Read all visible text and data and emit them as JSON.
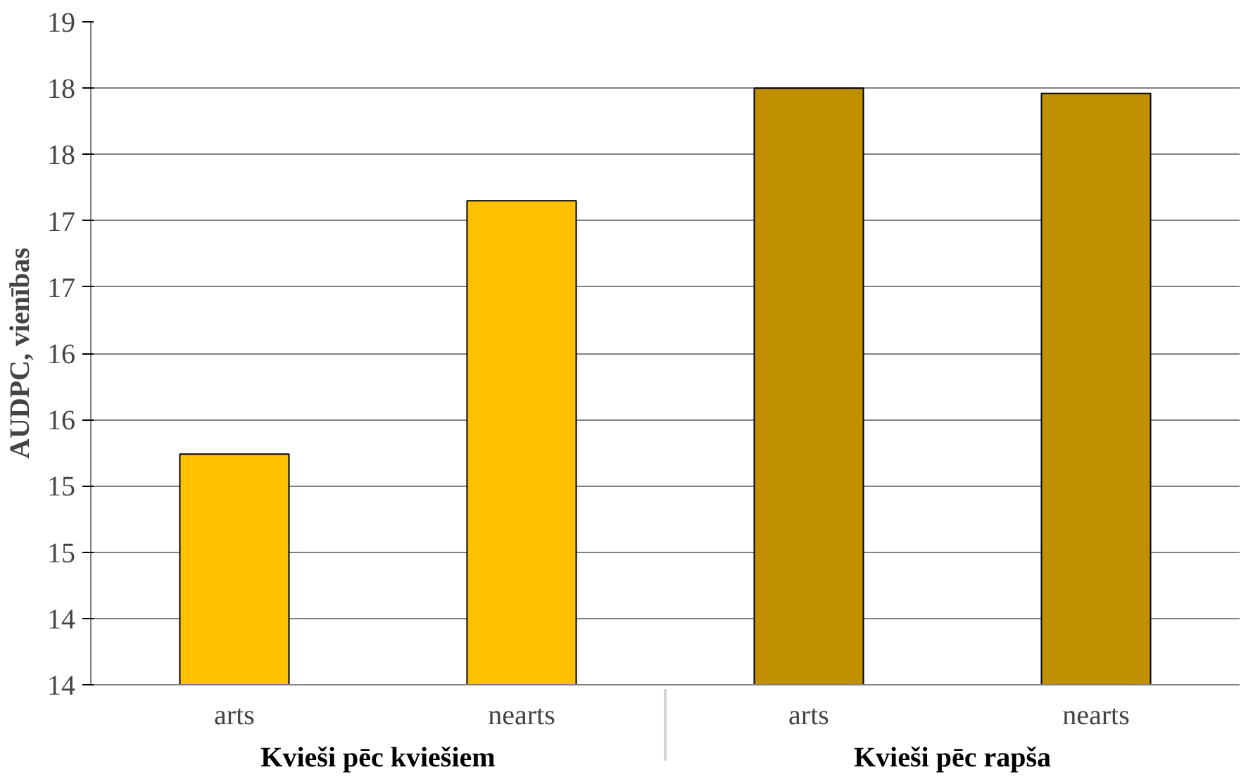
{
  "chart_data": {
    "type": "bar",
    "ylabel": "AUDPC, vienības",
    "categories": [
      "arts",
      "nearts",
      "arts",
      "nearts"
    ],
    "values": [
      15.24,
      17.15,
      18.0,
      17.96
    ],
    "colors": [
      "#ffc000",
      "#ffc000",
      "#c09000",
      "#c09000"
    ],
    "annotations": [
      "Kvieši pēc kviešiem",
      "Kvieši pēc rapša"
    ],
    "ylim": [
      13.5,
      18.5
    ],
    "yticks": [
      {
        "value": 13.5,
        "label": "14"
      },
      {
        "value": 14,
        "label": "14"
      },
      {
        "value": 14.5,
        "label": "15"
      },
      {
        "value": 15,
        "label": "15"
      },
      {
        "value": 15.5,
        "label": "16"
      },
      {
        "value": 16,
        "label": "16"
      },
      {
        "value": 16.5,
        "label": "17"
      },
      {
        "value": 17,
        "label": "17"
      },
      {
        "value": 17.5,
        "label": "18"
      },
      {
        "value": 18,
        "label": "18"
      },
      {
        "value": 18.5,
        "label": "19"
      }
    ],
    "grid": "y"
  }
}
